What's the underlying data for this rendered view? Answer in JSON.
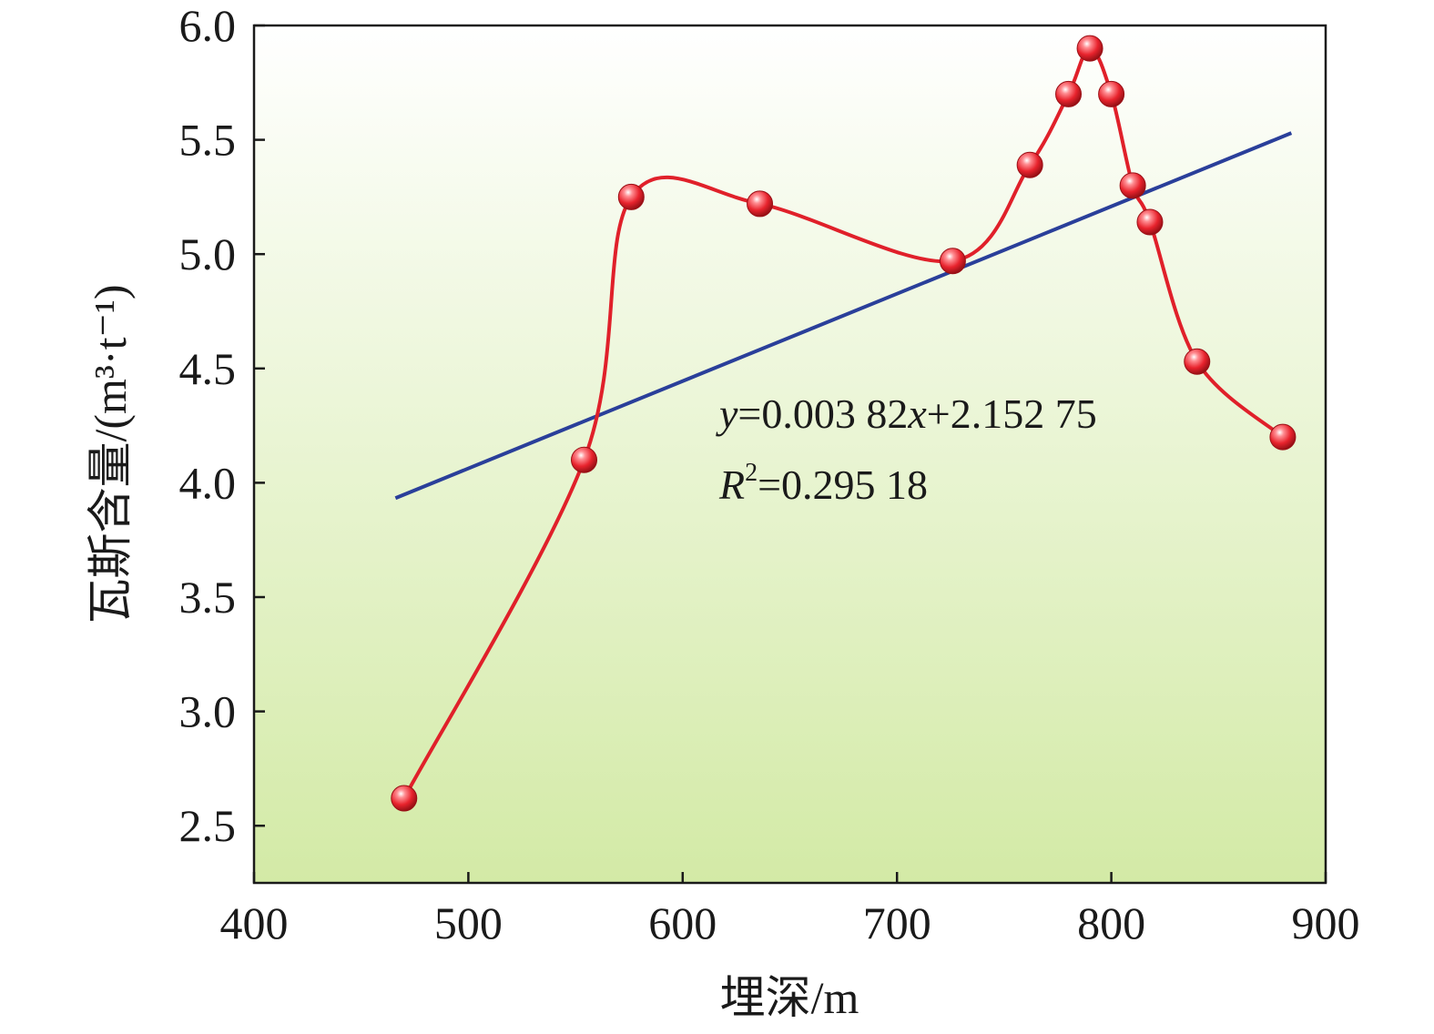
{
  "chart_data": {
    "type": "line",
    "xlabel": "埋深/m",
    "ylabel": "瓦斯含量/(m³·t⁻¹)",
    "xlim": [
      400,
      900
    ],
    "ylim": [
      2.25,
      6.0
    ],
    "x_ticks": [
      400,
      500,
      600,
      700,
      800,
      900
    ],
    "y_ticks": [
      2.5,
      3.0,
      3.5,
      4.0,
      4.5,
      5.0,
      5.5,
      6.0
    ],
    "x_tick_labels": [
      "400",
      "500",
      "600",
      "700",
      "800",
      "900"
    ],
    "y_tick_labels": [
      "2.5",
      "3.0",
      "3.5",
      "4.0",
      "4.5",
      "5.0",
      "5.5",
      "6.0"
    ],
    "grid": false,
    "series": [
      {
        "style": "smooth-line-with-markers",
        "x": [
          470,
          554,
          576,
          636,
          726,
          762,
          780,
          790,
          800,
          810,
          818,
          840,
          880
        ],
        "y": [
          2.62,
          4.1,
          5.25,
          5.22,
          4.97,
          5.39,
          5.7,
          5.9,
          5.7,
          5.3,
          5.14,
          4.53,
          4.2
        ]
      }
    ],
    "fit": {
      "slope": 0.00382,
      "intercept": 2.15275,
      "x_range": [
        466,
        884
      ],
      "equation_y": "y",
      "equation_mid": "=0.003 82",
      "equation_x": "x",
      "equation_rest": "+2.152 75",
      "r2_R": "R",
      "r2_sup": "2",
      "r2_rest": "=0.295 18"
    },
    "colors": {
      "series": "#e0202a",
      "marker": "#e8232d",
      "fit": "#2a3f9a",
      "bg_top": "#ffffff",
      "bg_bottom": "#d3eaa6",
      "axis": "#1a1a1a"
    }
  }
}
